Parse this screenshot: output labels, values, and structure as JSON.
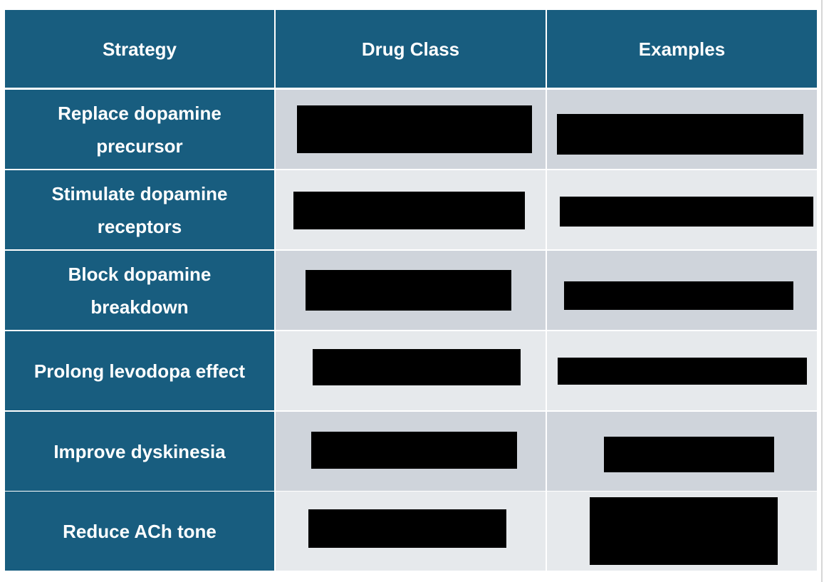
{
  "table": {
    "header": [
      "Strategy",
      "Drug Class",
      "Examples"
    ],
    "rows": [
      "Replace dopamine precursor",
      "Stimulate dopamine receptors",
      "Block dopamine breakdown",
      "Prolong levodopa effect",
      "Improve dyskinesia",
      "Reduce ACh tone"
    ]
  }
}
